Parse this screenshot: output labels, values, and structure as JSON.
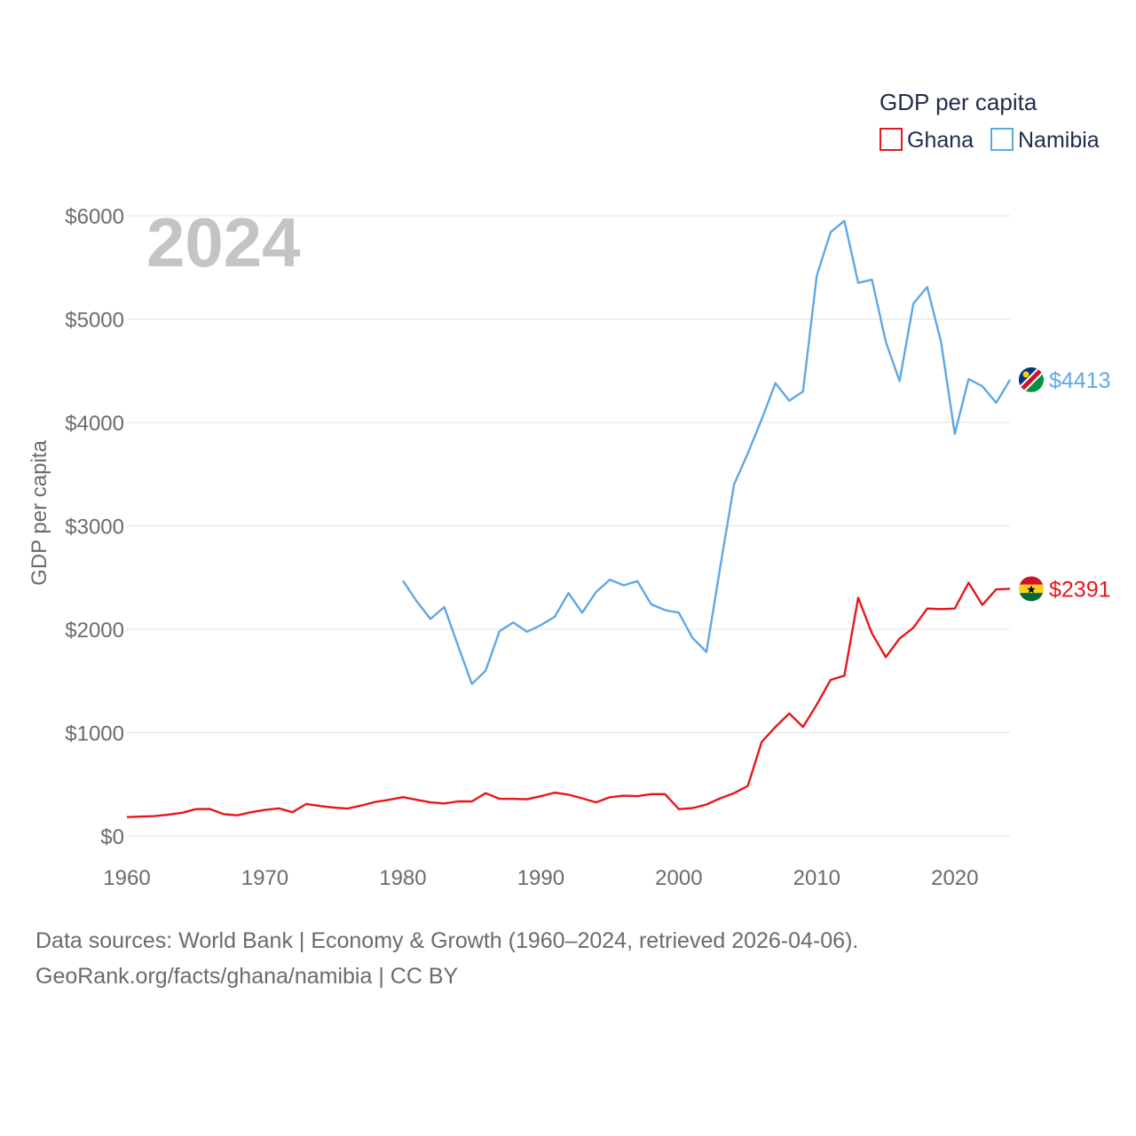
{
  "chart_data": {
    "type": "line",
    "ylabel": "GDP per capita",
    "xlabel": "",
    "ylim": [
      0,
      6000
    ],
    "xlim": [
      1960,
      2024
    ],
    "yticks": [
      0,
      1000,
      2000,
      3000,
      4000,
      5000,
      6000
    ],
    "ytick_labels": [
      "$0",
      "$1000",
      "$2000",
      "$3000",
      "$4000",
      "$5000",
      "$6000"
    ],
    "xticks": [
      1960,
      1970,
      1980,
      1990,
      2000,
      2010,
      2020
    ],
    "xtick_labels": [
      "1960",
      "1970",
      "1980",
      "1990",
      "2000",
      "2010",
      "2020"
    ],
    "year_label": "2024",
    "grid": true,
    "legend": {
      "title": "GDP per capita",
      "position": "top-right",
      "entries": [
        "Ghana",
        "Namibia"
      ]
    },
    "series": [
      {
        "name": "Ghana",
        "color": "#e8161b",
        "end_label": "$2391",
        "flag": "ghana",
        "x": [
          1960,
          1961,
          1962,
          1963,
          1964,
          1965,
          1966,
          1967,
          1968,
          1969,
          1970,
          1971,
          1972,
          1973,
          1974,
          1975,
          1976,
          1977,
          1978,
          1979,
          1980,
          1981,
          1982,
          1983,
          1984,
          1985,
          1986,
          1987,
          1988,
          1989,
          1990,
          1991,
          1992,
          1993,
          1994,
          1995,
          1996,
          1997,
          1998,
          1999,
          2000,
          2001,
          2002,
          2003,
          2004,
          2005,
          2006,
          2007,
          2008,
          2009,
          2010,
          2011,
          2012,
          2013,
          2014,
          2015,
          2016,
          2017,
          2018,
          2019,
          2020,
          2021,
          2022,
          2023,
          2024
        ],
        "values": [
          183,
          188,
          192,
          207,
          225,
          260,
          262,
          212,
          200,
          230,
          252,
          268,
          230,
          310,
          290,
          275,
          265,
          295,
          330,
          350,
          376,
          350,
          325,
          315,
          335,
          335,
          415,
          360,
          360,
          355,
          385,
          420,
          400,
          365,
          325,
          375,
          390,
          385,
          405,
          405,
          260,
          270,
          305,
          365,
          415,
          485,
          910,
          1055,
          1185,
          1055,
          1270,
          1510,
          1550,
          2305,
          1960,
          1730,
          1910,
          2015,
          2200,
          2195,
          2200,
          2450,
          2235,
          2385,
          2391
        ]
      },
      {
        "name": "Namibia",
        "color": "#5ea8e6",
        "end_label": "$4413",
        "flag": "namibia",
        "x": [
          1980,
          1981,
          1982,
          1983,
          1984,
          1985,
          1986,
          1987,
          1988,
          1989,
          1990,
          1991,
          1992,
          1993,
          1994,
          1995,
          1996,
          1997,
          1998,
          1999,
          2000,
          2001,
          2002,
          2003,
          2004,
          2005,
          2006,
          2007,
          2008,
          2009,
          2010,
          2011,
          2012,
          2013,
          2014,
          2015,
          2016,
          2017,
          2018,
          2019,
          2020,
          2021,
          2022,
          2023,
          2024
        ],
        "values": [
          2470,
          2270,
          2100,
          2215,
          1840,
          1470,
          1600,
          1980,
          2065,
          1975,
          2040,
          2120,
          2350,
          2160,
          2360,
          2480,
          2425,
          2465,
          2240,
          2185,
          2160,
          1915,
          1780,
          2600,
          3400,
          3700,
          4030,
          4380,
          4210,
          4300,
          5420,
          5840,
          5950,
          5350,
          5380,
          4780,
          4400,
          5150,
          5310,
          4780,
          3890,
          4420,
          4350,
          4190,
          4413
        ]
      }
    ]
  },
  "footer": {
    "line1": "Data sources: World Bank | Economy & Growth (1960–2024, retrieved 2026-04-06).",
    "line2": "GeoRank.org/facts/ghana/namibia | CC BY"
  }
}
